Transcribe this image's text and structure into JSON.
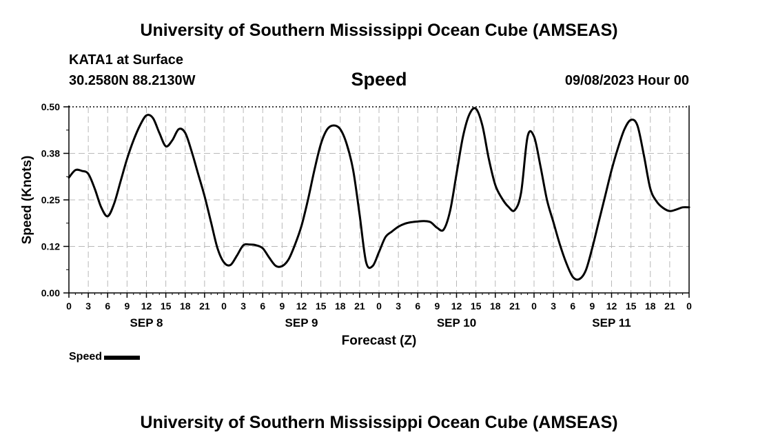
{
  "header": {
    "title": "University of Southern Mississippi Ocean Cube (AMSEAS)",
    "station": "KATA1 at Surface",
    "coords": "30.2580N  88.2130W",
    "datetime": "09/08/2023 Hour 00"
  },
  "footer": {
    "title": "University of Southern Mississippi Ocean Cube (AMSEAS)"
  },
  "legend": {
    "label": "Speed",
    "color": "#000000"
  },
  "chart_data": {
    "type": "line",
    "title": "Speed",
    "xlabel": "Forecast (Z)",
    "ylabel": "Speed (Knots)",
    "x_unit": "forecast hour from 09/08/2023 00Z",
    "xlim": [
      0,
      96
    ],
    "ylim": [
      0,
      0.5
    ],
    "yticks": [
      0.0,
      0.125,
      0.25,
      0.375,
      0.5
    ],
    "ytick_labels": [
      "0.00",
      "0.12",
      "0.25",
      "0.38",
      "0.50"
    ],
    "xticks": [
      0,
      3,
      6,
      9,
      12,
      15,
      18,
      21,
      24,
      27,
      30,
      33,
      36,
      39,
      42,
      45,
      48,
      51,
      54,
      57,
      60,
      63,
      66,
      69,
      72,
      75,
      78,
      81,
      84,
      87,
      90,
      93,
      96
    ],
    "xtick_labels": [
      "0",
      "3",
      "6",
      "9",
      "12",
      "15",
      "18",
      "21",
      "0",
      "3",
      "6",
      "9",
      "12",
      "15",
      "18",
      "21",
      "0",
      "3",
      "6",
      "9",
      "12",
      "15",
      "18",
      "21",
      "0",
      "3",
      "6",
      "9",
      "12",
      "15",
      "18",
      "21",
      "0"
    ],
    "day_labels": [
      {
        "label": "SEP 8",
        "hour": 12
      },
      {
        "label": "SEP 9",
        "hour": 36
      },
      {
        "label": "SEP 10",
        "hour": 60
      },
      {
        "label": "SEP 11",
        "hour": 84
      }
    ],
    "grid": true,
    "series": [
      {
        "name": "Speed",
        "color": "#000000",
        "x": [
          0,
          1,
          2,
          3,
          4,
          5,
          6,
          7,
          8,
          9,
          10,
          11,
          12,
          13,
          14,
          15,
          16,
          17,
          18,
          19,
          20,
          21,
          22,
          23,
          24,
          25,
          26,
          27,
          28,
          29,
          30,
          31,
          32,
          33,
          34,
          35,
          36,
          37,
          38,
          39,
          40,
          41,
          42,
          43,
          44,
          45,
          46,
          47,
          48,
          49,
          50,
          51,
          52,
          53,
          54,
          55,
          56,
          57,
          58,
          59,
          60,
          61,
          62,
          63,
          64,
          65,
          66,
          67,
          68,
          69,
          70,
          71,
          72,
          73,
          74,
          75,
          76,
          77,
          78,
          79,
          80,
          81,
          82,
          83,
          84,
          85,
          86,
          87,
          88,
          89,
          90,
          91,
          92,
          93,
          94,
          95,
          96
        ],
        "values": [
          0.31,
          0.33,
          0.328,
          0.32,
          0.28,
          0.23,
          0.206,
          0.24,
          0.3,
          0.36,
          0.41,
          0.45,
          0.477,
          0.47,
          0.43,
          0.394,
          0.41,
          0.44,
          0.43,
          0.38,
          0.32,
          0.26,
          0.19,
          0.12,
          0.082,
          0.075,
          0.1,
          0.128,
          0.13,
          0.128,
          0.12,
          0.095,
          0.073,
          0.072,
          0.09,
          0.13,
          0.18,
          0.25,
          0.33,
          0.4,
          0.44,
          0.45,
          0.44,
          0.4,
          0.33,
          0.21,
          0.083,
          0.072,
          0.11,
          0.15,
          0.165,
          0.178,
          0.186,
          0.19,
          0.192,
          0.193,
          0.19,
          0.175,
          0.17,
          0.22,
          0.32,
          0.42,
          0.48,
          0.495,
          0.45,
          0.36,
          0.29,
          0.255,
          0.232,
          0.222,
          0.27,
          0.42,
          0.42,
          0.34,
          0.25,
          0.19,
          0.13,
          0.08,
          0.043,
          0.037,
          0.06,
          0.12,
          0.19,
          0.26,
          0.33,
          0.39,
          0.44,
          0.465,
          0.45,
          0.37,
          0.28,
          0.245,
          0.228,
          0.22,
          0.224,
          0.23,
          0.23
        ]
      }
    ]
  }
}
